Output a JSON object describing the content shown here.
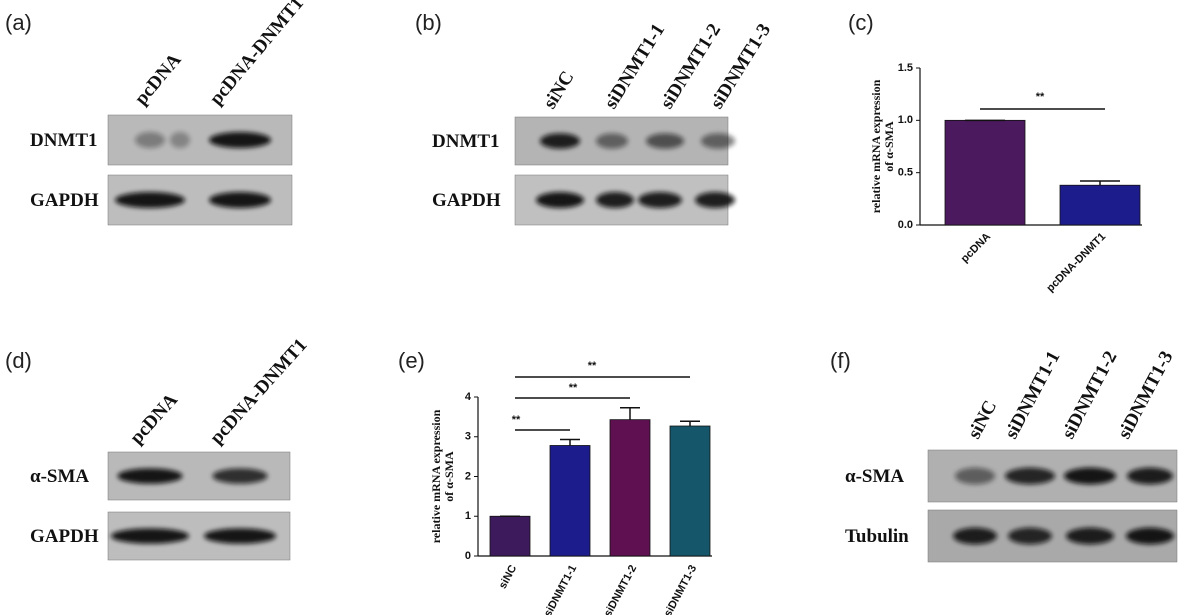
{
  "panels": {
    "a": {
      "label": "(a)",
      "lanes": [
        "pcDNA",
        "pcDNA-DNMT1"
      ],
      "rows": [
        "DNMT1",
        "GAPDH"
      ]
    },
    "b": {
      "label": "(b)",
      "lanes": [
        "siNC",
        "siDNMT1-1",
        "siDNMT1-2",
        "siDNMT1-3"
      ],
      "rows": [
        "DNMT1",
        "GAPDH"
      ]
    },
    "d": {
      "label": "(d)",
      "lanes": [
        "pcDNA",
        "pcDNA-DNMT1"
      ],
      "rows": [
        "α-SMA",
        "GAPDH"
      ]
    },
    "f": {
      "label": "(f)",
      "lanes": [
        "siNC",
        "siDNMT1-1",
        "siDNMT1-2",
        "siDNMT1-3"
      ],
      "rows": [
        "α-SMA",
        "Tubulin"
      ]
    }
  },
  "chart_data": [
    {
      "panel_label": "(c)",
      "type": "bar",
      "ylabel": [
        "relative mRNA expression",
        "of α-SMA"
      ],
      "categories": [
        "pcDNA",
        "pcDNA-DNMT1"
      ],
      "values": [
        1.0,
        0.38
      ],
      "errors": [
        0,
        0.04
      ],
      "colors": [
        "#4b1a5e",
        "#1c1c8c"
      ],
      "ylim": [
        0,
        1.5
      ],
      "yticks": [
        {
          "value": 0,
          "label": "0.0"
        },
        0.5,
        {
          "value": 1,
          "label": "1.0"
        },
        {
          "value": 1.5,
          "label": "1.5"
        }
      ],
      "annotations": [
        "**"
      ]
    },
    {
      "panel_label": "(e)",
      "type": "bar",
      "ylabel": [
        "relative mRNA expression",
        "of α-SMA"
      ],
      "categories": [
        "siNC",
        "siDNMT1-1",
        "siDNMT1-2",
        "siDNMT1-3"
      ],
      "values": [
        1,
        2.78,
        3.43,
        3.27
      ],
      "errors": [
        0,
        0.15,
        0.3,
        0.12
      ],
      "colors": [
        "#3d1a5c",
        "#1c1c8c",
        "#5e1050",
        "#16566a"
      ],
      "ylim": [
        0,
        4
      ],
      "yticks": [
        0,
        1,
        2,
        3,
        4
      ],
      "annotations": [
        "**",
        "**",
        "**"
      ]
    }
  ]
}
